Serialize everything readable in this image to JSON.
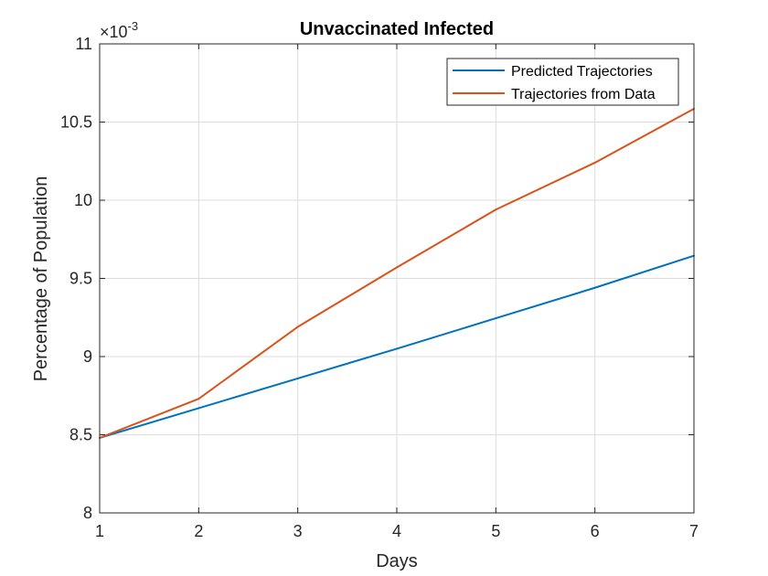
{
  "chart_data": {
    "type": "line",
    "title": "Unvaccinated Infected",
    "xlabel": "Days",
    "ylabel": "Percentage of Population",
    "y_multiplier": {
      "base": "×10",
      "exponent": "-3"
    },
    "x": [
      1,
      2,
      3,
      4,
      5,
      6,
      7
    ],
    "xlim": [
      1,
      7
    ],
    "ylim": [
      8,
      11
    ],
    "xticks": [
      "1",
      "2",
      "3",
      "4",
      "5",
      "6",
      "7"
    ],
    "yticks": [
      "8",
      "8.5",
      "9",
      "9.5",
      "10",
      "10.5",
      "11"
    ],
    "grid": true,
    "legend_position": "top-right",
    "series": [
      {
        "name": "Predicted Trajectories",
        "color": "#0072BD",
        "values": [
          8.48,
          8.67,
          8.86,
          9.05,
          9.245,
          9.44,
          9.645
        ]
      },
      {
        "name": "Trajectories from Data",
        "color": "#D95319",
        "values": [
          8.48,
          8.73,
          9.19,
          9.57,
          9.94,
          10.24,
          10.585
        ]
      }
    ]
  }
}
